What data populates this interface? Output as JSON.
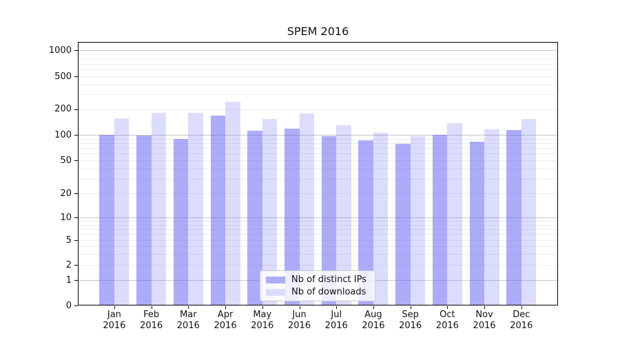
{
  "chart_data": {
    "type": "bar",
    "title": "SPEM 2016",
    "x_year": "2016",
    "categories": [
      "Jan",
      "Feb",
      "Mar",
      "Apr",
      "May",
      "Jun",
      "Jul",
      "Aug",
      "Sep",
      "Oct",
      "Nov",
      "Dec"
    ],
    "series": [
      {
        "name": "Nb of distinct IPs",
        "values": [
          100,
          98,
          89,
          168,
          112,
          118,
          96,
          86,
          78,
          100,
          83,
          113
        ],
        "fill": "rgba(90,90,242,0.5)",
        "swatch": "#adadf9"
      },
      {
        "name": "Nb of downloads",
        "values": [
          157,
          182,
          180,
          245,
          152,
          176,
          130,
          106,
          96,
          137,
          116,
          153
        ],
        "fill": "rgba(90,90,242,0.21)",
        "swatch": "#dcdcfa"
      }
    ],
    "y_ticks": [
      "0",
      "1",
      "2",
      "5",
      "10",
      "20",
      "50",
      "100",
      "200",
      "500",
      "1000"
    ],
    "y_scale": "log-above-1-with-zero-baseline",
    "ylim": [
      0,
      1260
    ],
    "xlabel": "",
    "ylabel": "",
    "grid": {
      "on": true,
      "major_color": "#c6c6c6",
      "minor_color": "#ececec"
    },
    "legend": {
      "position": "lower-center"
    }
  }
}
